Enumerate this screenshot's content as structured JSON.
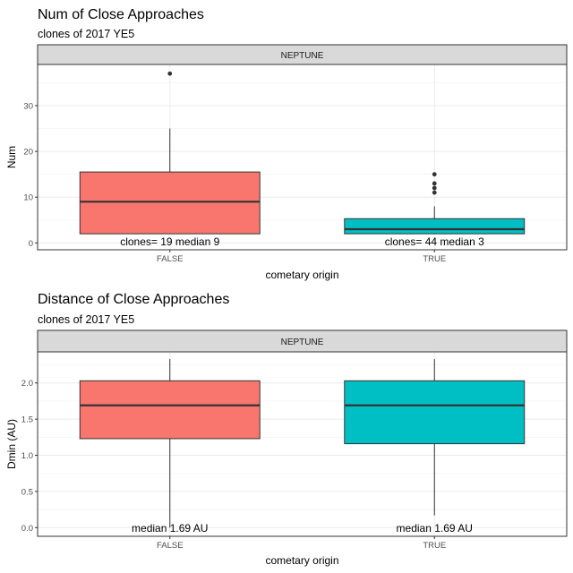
{
  "chart_data": [
    {
      "type": "boxplot",
      "title": "Num of Close Approaches",
      "subtitle": "clones of 2017 YE5",
      "facet_label": "NEPTUNE",
      "xlabel": "cometary origin",
      "ylabel": "Num",
      "categories": [
        "FALSE",
        "TRUE"
      ],
      "ylim": [
        -1.5,
        39
      ],
      "y_ticks": [
        0,
        10,
        20,
        30
      ],
      "y_tick_labels": [
        "0",
        "10",
        "20",
        "30"
      ],
      "grid": true,
      "boxes": [
        {
          "name": "FALSE",
          "color": "#F8766D",
          "whisker_low": 2,
          "q1": 2,
          "median": 9,
          "q3": 15.5,
          "whisker_high": 25,
          "outliers": [
            37
          ],
          "annotation": "clones= 19 median 9"
        },
        {
          "name": "TRUE",
          "color": "#00BFC4",
          "whisker_low": 2,
          "q1": 2,
          "median": 3,
          "q3": 5.3,
          "whisker_high": 8,
          "outliers": [
            11,
            12,
            13,
            15
          ],
          "annotation": "clones= 44 median 3"
        }
      ]
    },
    {
      "type": "boxplot",
      "title": "Distance of Close Approaches",
      "subtitle": "clones of 2017 YE5",
      "facet_label": "NEPTUNE",
      "xlabel": "cometary origin",
      "ylabel": "Dmin (AU)",
      "categories": [
        "FALSE",
        "TRUE"
      ],
      "ylim": [
        -0.12,
        2.43
      ],
      "y_ticks": [
        0.0,
        0.5,
        1.0,
        1.5,
        2.0
      ],
      "y_tick_labels": [
        "0.0",
        "0.5",
        "1.0",
        "1.5",
        "2.0"
      ],
      "grid": true,
      "boxes": [
        {
          "name": "FALSE",
          "color": "#F8766D",
          "whisker_low": 0.0,
          "q1": 1.23,
          "median": 1.69,
          "q3": 2.03,
          "whisker_high": 2.33,
          "outliers": [],
          "annotation": "median 1.69 AU"
        },
        {
          "name": "TRUE",
          "color": "#00BFC4",
          "whisker_low": 0.17,
          "q1": 1.16,
          "median": 1.69,
          "q3": 2.03,
          "whisker_high": 2.33,
          "outliers": [],
          "annotation": "median 1.69 AU"
        }
      ]
    }
  ]
}
